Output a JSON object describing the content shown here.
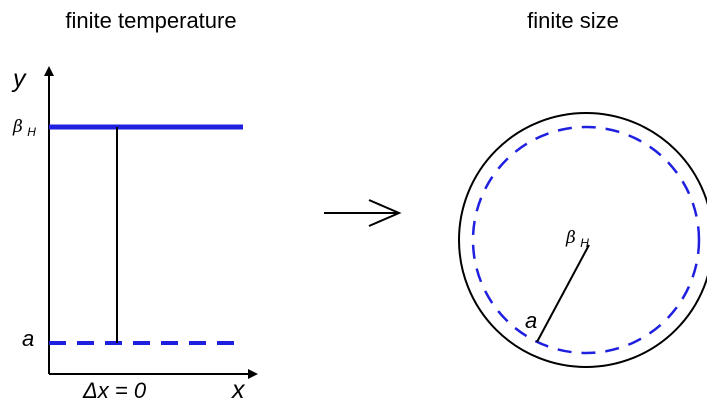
{
  "left_panel": {
    "title": "finite temperature",
    "y_axis_label": "y",
    "x_axis_label": "x",
    "top_line_label": {
      "base": "β",
      "subscript": "H"
    },
    "bottom_line_label": "a",
    "separation_label": "Δx = 0"
  },
  "right_panel": {
    "title": "finite size",
    "center_label": {
      "base": "β",
      "subscript": "H"
    },
    "edge_label": "a"
  },
  "colors": {
    "blue": "#1f1fe0",
    "black": "#000000"
  }
}
